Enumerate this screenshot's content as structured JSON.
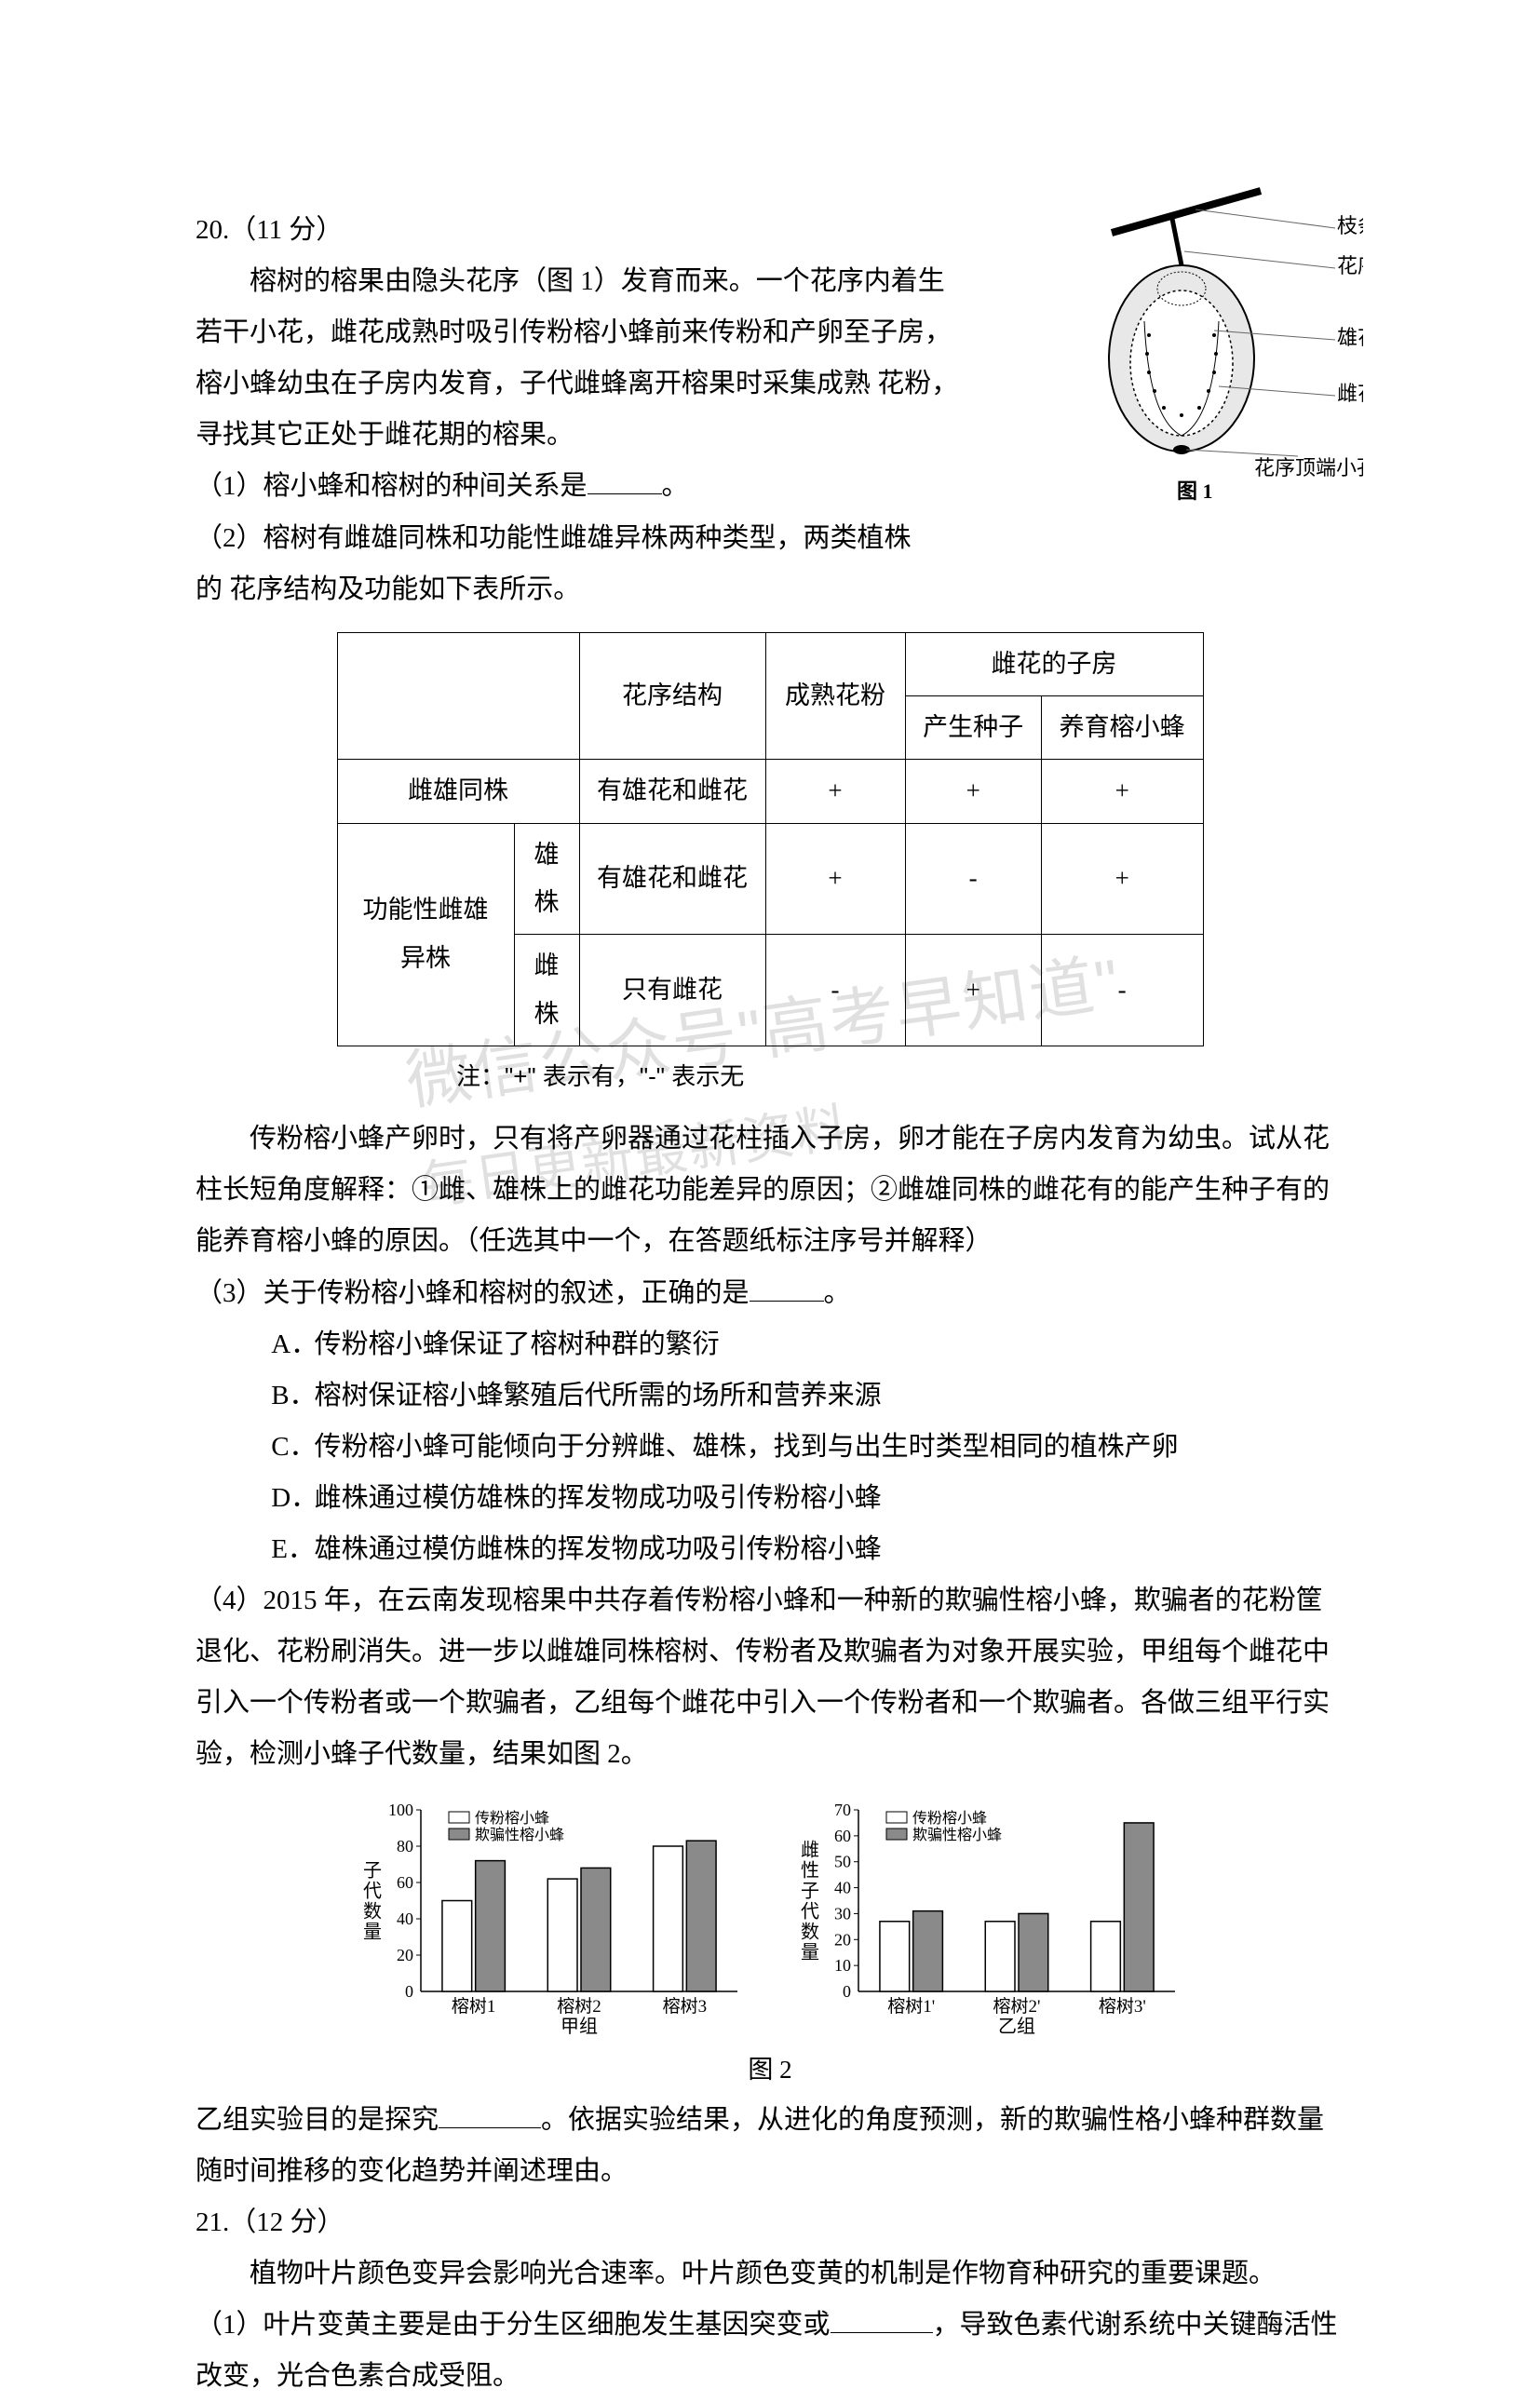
{
  "watermark": {
    "line1": "微信公众号\"高考早知道\"",
    "line2": "每日更新最新资料"
  },
  "q20": {
    "number": "20.（11 分）",
    "p1": "榕树的榕果由隐头花序（图 1）发育而来。一个花序内着生若干小花，雌花成熟时吸引传粉榕小蜂前来传粉和产卵至子房，榕小蜂幼虫在子房内发育，子代雌蜂离开榕果时采集成熟 花粉，寻找其它正处于雌花期的榕果。",
    "q1_pre": "（1）榕小蜂和榕树的种间关系是",
    "q1_post": "。",
    "q2_line1": "（2）榕树有雌雄同株和功能性雌雄异株两种类型，两类植株",
    "q2_line2": "的 花序结构及功能如下表所示。",
    "table": {
      "h_flowerstruct": "花序结构",
      "h_pollen": "成熟花粉",
      "h_ovary": "雌花的子房",
      "h_seed": "产生种子",
      "h_raise": "养育榕小蜂",
      "r1c1": "雌雄同株",
      "r1c2": "有雄花和雌花",
      "r1c3": "+",
      "r1c4": "+",
      "r1c5": "+",
      "r2c1": "功能性雌雄异株",
      "r2c1a": "雄株",
      "r2c2a": "有雄花和雌花",
      "r2c3a": "+",
      "r2c4a": "-",
      "r2c5a": "+",
      "r2c1b": "雌株",
      "r2c2b": "只有雌花",
      "r2c3b": "-",
      "r2c4b": "+",
      "r2c5b": "-"
    },
    "table_note": "注：\"+\" 表示有，\"-\" 表示无",
    "p_explain": "传粉榕小蜂产卵时，只有将产卵器通过花柱插入子房，卵才能在子房内发育为幼虫。试从花柱长短角度解释：①雌、雄株上的雌花功能差异的原因；②雌雄同株的雌花有的能产生种子有的能养育榕小蜂的原因。（任选其中一个，在答题纸标注序号并解释）",
    "q3_pre": "（3）关于传粉榕小蜂和榕树的叙述，正确的是",
    "q3_post": "。",
    "optA": "传粉榕小蜂保证了榕树种群的繁衍",
    "optB": "榕树保证榕小蜂繁殖后代所需的场所和营养来源",
    "optC": "传粉榕小蜂可能倾向于分辨雌、雄株，找到与出生时类型相同的植株产卵",
    "optD": "雌株通过模仿雄株的挥发物成功吸引传粉榕小蜂",
    "optE": "雄株通过模仿雌株的挥发物成功吸引传粉榕小蜂",
    "q4": "（4）2015 年，在云南发现榕果中共存着传粉榕小蜂和一种新的欺骗性榕小蜂，欺骗者的花粉筐退化、花粉刷消失。进一步以雌雄同株榕树、传粉者及欺骗者为对象开展实验，甲组每个雌花中引入一个传粉者或一个欺骗者，乙组每个雌花中引入一个传粉者和一个欺骗者。各做三组平行实验，检测小蜂子代数量，结果如图 2。",
    "chart_caption": "图 2",
    "legend_polli": "传粉榕小蜂",
    "legend_cheat": "欺骗性榕小蜂",
    "chartA": {
      "ylabel": "子代数量",
      "ymax": 100,
      "yticks": [
        20,
        40,
        60,
        80,
        100
      ],
      "cats": [
        "榕树1",
        "榕树2",
        "榕树3"
      ],
      "group_label": "甲组",
      "polli_values": [
        50,
        62,
        80
      ],
      "cheat_values": [
        72,
        68,
        83
      ],
      "polli_color": "#ffffff",
      "cheat_color": "#8a8a8a",
      "stroke": "#000000"
    },
    "chartB": {
      "ylabel": "雌性子代数量",
      "ymax": 70,
      "yticks": [
        10,
        20,
        30,
        40,
        50,
        60,
        70
      ],
      "cats": [
        "榕树1'",
        "榕树2'",
        "榕树3'"
      ],
      "group_label": "乙组",
      "polli_values": [
        27,
        27,
        27
      ],
      "cheat_values": [
        31,
        30,
        65
      ],
      "polli_color": "#ffffff",
      "cheat_color": "#8a8a8a",
      "stroke": "#000000"
    },
    "q4_tail_pre": "乙组实验目的是探究",
    "q4_tail_post": "。依据实验结果，从进化的角度预测，新的欺骗性格小蜂种群数量随时间推移的变化趋势并阐述理由。",
    "fig1_caption": "图 1",
    "fig1_labels": {
      "branch": "枝条",
      "stalk": "花序柄",
      "male": "雄花",
      "female": "雌花",
      "hole": "花序顶端小孔"
    }
  },
  "q21": {
    "number": "21.（12 分）",
    "p1": "植物叶片颜色变异会影响光合速率。叶片颜色变黄的机制是作物育种研究的重要课题。",
    "q1_pre": "（1）叶片变黄主要是由于分生区细胞发生基因突变或",
    "q1_post": "，导致色素代谢系统中关键酶活性改变，光合色素合成受阻。"
  }
}
